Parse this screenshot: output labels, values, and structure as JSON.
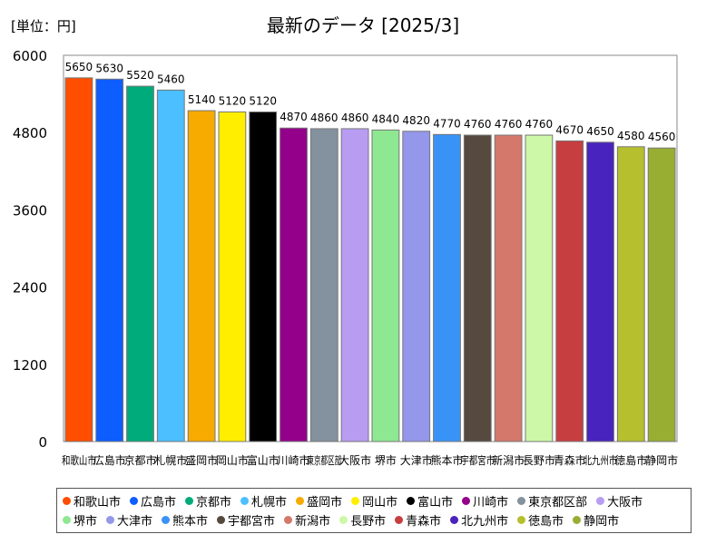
{
  "unit_label": "[単位：円]",
  "chart_data": {
    "type": "bar",
    "title": "最新のデータ [2025/3]",
    "xlabel": "",
    "ylabel": "",
    "ylim": [
      0,
      6000
    ],
    "yticks": [
      "0",
      "1200",
      "2400",
      "3600",
      "4800",
      "6000"
    ],
    "grid": false,
    "legend_position": "bottom",
    "categories": [
      "和歌山市",
      "広島市",
      "京都市",
      "札幌市",
      "盛岡市",
      "岡山市",
      "富山市",
      "川崎市",
      "東京都区部",
      "大阪市",
      "堺市",
      "大津市",
      "熊本市",
      "宇都宮市",
      "新潟市",
      "長野市",
      "青森市",
      "北九州市",
      "徳島市",
      "静岡市"
    ],
    "values": [
      5650,
      5630,
      5520,
      5460,
      5140,
      5120,
      5120,
      4870,
      4860,
      4860,
      4840,
      4820,
      4770,
      4760,
      4760,
      4760,
      4670,
      4650,
      4580,
      4560
    ],
    "value_labels": [
      "5650",
      "5630",
      "5520",
      "5460",
      "5140",
      "5120",
      "5120",
      "4870",
      "4860",
      "4860",
      "4840",
      "4820",
      "4770",
      "4760",
      "4760",
      "4760",
      "4670",
      "4650",
      "4580",
      "4560"
    ],
    "colors": [
      "#ff4e00",
      "#0d5dff",
      "#00ab7b",
      "#4bbfff",
      "#f7aa00",
      "#ffee00",
      "#000000",
      "#94008a",
      "#84919e",
      "#b89cf2",
      "#8ee791",
      "#9497ea",
      "#3993f6",
      "#56493d",
      "#d4786b",
      "#cdf8a7",
      "#c73e41",
      "#4823be",
      "#b6bf2d",
      "#97ae33"
    ]
  }
}
